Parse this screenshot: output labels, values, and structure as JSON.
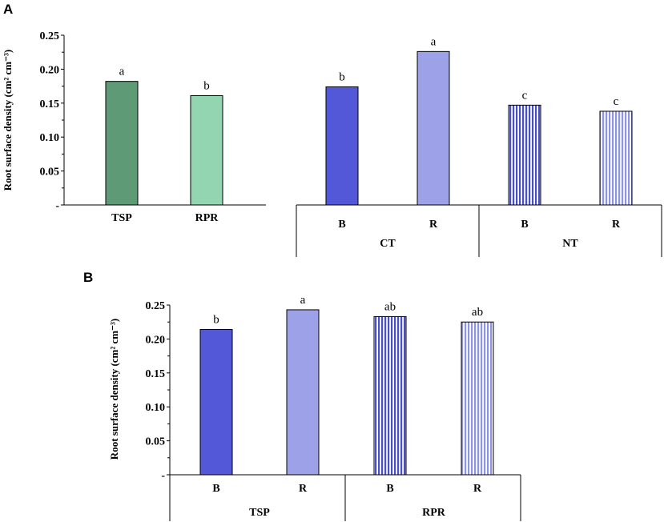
{
  "chart_data": [
    {
      "id": "A-left",
      "panel": "A",
      "type": "bar",
      "categories": [
        "TSP",
        "RPR"
      ],
      "values": [
        0.182,
        0.161
      ],
      "letters": [
        "a",
        "b"
      ],
      "colors": [
        "#5f9a77",
        "#92d5b0"
      ],
      "patterns": [
        "solid",
        "solid"
      ],
      "ylabel": "Root surface density (cm² cm⁻³)",
      "ylim": [
        0,
        0.25
      ],
      "yticks": [
        "-",
        "0.05",
        "0.10",
        "0.15",
        "0.20",
        "0.25"
      ],
      "groups": []
    },
    {
      "id": "A-right",
      "panel": "A",
      "type": "bar",
      "categories": [
        "B",
        "R",
        "B",
        "R"
      ],
      "values": [
        0.174,
        0.226,
        0.147,
        0.138
      ],
      "letters": [
        "b",
        "a",
        "c",
        "c"
      ],
      "colors": [
        "#5258d8",
        "#9da1e8",
        "#4a4fc4",
        "#8f94e0"
      ],
      "patterns": [
        "solid",
        "solid",
        "stripes",
        "stripes"
      ],
      "ylim": [
        0,
        0.25
      ],
      "groups": [
        {
          "label": "CT",
          "span": [
            0,
            1
          ]
        },
        {
          "label": "NT",
          "span": [
            2,
            3
          ]
        }
      ]
    },
    {
      "id": "B",
      "panel": "B",
      "type": "bar",
      "categories": [
        "B",
        "R",
        "B",
        "R"
      ],
      "values": [
        0.214,
        0.243,
        0.233,
        0.225
      ],
      "letters": [
        "b",
        "a",
        "ab",
        "ab"
      ],
      "colors": [
        "#5258d8",
        "#9da1e8",
        "#4a4fc4",
        "#8f94e0"
      ],
      "patterns": [
        "solid",
        "solid",
        "stripes",
        "stripes"
      ],
      "ylabel": "Root surface density (cm² cm⁻³)",
      "ylim": [
        0,
        0.25
      ],
      "yticks": [
        "-",
        "0.05",
        "0.10",
        "0.15",
        "0.20",
        "0.25"
      ],
      "groups": [
        {
          "label": "TSP",
          "span": [
            0,
            1
          ]
        },
        {
          "label": "RPR",
          "span": [
            2,
            3
          ]
        }
      ]
    }
  ],
  "panel_labels": {
    "a": "A",
    "b": "B"
  }
}
